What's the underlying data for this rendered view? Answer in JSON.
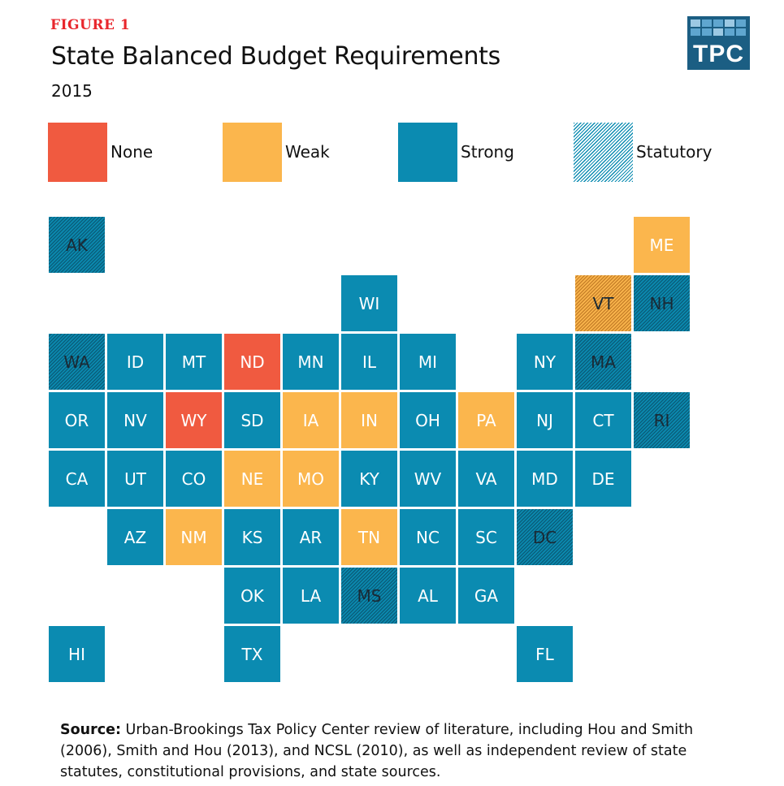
{
  "figure_label": "FIGURE 1",
  "title": "State Balanced Budget Requirements",
  "subtitle": "2015",
  "logo_text": "TPC",
  "legend": [
    {
      "key": "none",
      "label": "None",
      "color": "#f05a40"
    },
    {
      "key": "weak",
      "label": "Weak",
      "color": "#fbb64d"
    },
    {
      "key": "strong",
      "label": "Strong",
      "color": "#0b8bb1"
    },
    {
      "key": "statutory",
      "label": "Statutory",
      "pattern": "hatched"
    }
  ],
  "states": [
    {
      "abbr": "AK",
      "category": "strong",
      "statutory": true
    },
    {
      "abbr": "ME",
      "category": "weak",
      "statutory": false
    },
    {
      "abbr": "WI",
      "category": "strong",
      "statutory": false
    },
    {
      "abbr": "VT",
      "category": "weak",
      "statutory": true
    },
    {
      "abbr": "NH",
      "category": "strong",
      "statutory": true
    },
    {
      "abbr": "WA",
      "category": "strong",
      "statutory": true
    },
    {
      "abbr": "ID",
      "category": "strong",
      "statutory": false
    },
    {
      "abbr": "MT",
      "category": "strong",
      "statutory": false
    },
    {
      "abbr": "ND",
      "category": "none",
      "statutory": false
    },
    {
      "abbr": "MN",
      "category": "strong",
      "statutory": false
    },
    {
      "abbr": "IL",
      "category": "strong",
      "statutory": false
    },
    {
      "abbr": "MI",
      "category": "strong",
      "statutory": false
    },
    {
      "abbr": "NY",
      "category": "strong",
      "statutory": false
    },
    {
      "abbr": "MA",
      "category": "strong",
      "statutory": true
    },
    {
      "abbr": "OR",
      "category": "strong",
      "statutory": false
    },
    {
      "abbr": "NV",
      "category": "strong",
      "statutory": false
    },
    {
      "abbr": "WY",
      "category": "none",
      "statutory": false
    },
    {
      "abbr": "SD",
      "category": "strong",
      "statutory": false
    },
    {
      "abbr": "IA",
      "category": "weak",
      "statutory": false
    },
    {
      "abbr": "IN",
      "category": "weak",
      "statutory": false
    },
    {
      "abbr": "OH",
      "category": "strong",
      "statutory": false
    },
    {
      "abbr": "PA",
      "category": "weak",
      "statutory": false
    },
    {
      "abbr": "NJ",
      "category": "strong",
      "statutory": false
    },
    {
      "abbr": "CT",
      "category": "strong",
      "statutory": false
    },
    {
      "abbr": "RI",
      "category": "strong",
      "statutory": true
    },
    {
      "abbr": "CA",
      "category": "strong",
      "statutory": false
    },
    {
      "abbr": "UT",
      "category": "strong",
      "statutory": false
    },
    {
      "abbr": "CO",
      "category": "strong",
      "statutory": false
    },
    {
      "abbr": "NE",
      "category": "weak",
      "statutory": false
    },
    {
      "abbr": "MO",
      "category": "weak",
      "statutory": false
    },
    {
      "abbr": "KY",
      "category": "strong",
      "statutory": false
    },
    {
      "abbr": "WV",
      "category": "strong",
      "statutory": false
    },
    {
      "abbr": "VA",
      "category": "strong",
      "statutory": false
    },
    {
      "abbr": "MD",
      "category": "strong",
      "statutory": false
    },
    {
      "abbr": "DE",
      "category": "strong",
      "statutory": false
    },
    {
      "abbr": "AZ",
      "category": "strong",
      "statutory": false
    },
    {
      "abbr": "NM",
      "category": "weak",
      "statutory": false
    },
    {
      "abbr": "KS",
      "category": "strong",
      "statutory": false
    },
    {
      "abbr": "AR",
      "category": "strong",
      "statutory": false
    },
    {
      "abbr": "TN",
      "category": "weak",
      "statutory": false
    },
    {
      "abbr": "NC",
      "category": "strong",
      "statutory": false
    },
    {
      "abbr": "SC",
      "category": "strong",
      "statutory": false
    },
    {
      "abbr": "DC",
      "category": "strong",
      "statutory": true
    },
    {
      "abbr": "OK",
      "category": "strong",
      "statutory": false
    },
    {
      "abbr": "LA",
      "category": "strong",
      "statutory": false
    },
    {
      "abbr": "MS",
      "category": "strong",
      "statutory": true
    },
    {
      "abbr": "AL",
      "category": "strong",
      "statutory": false
    },
    {
      "abbr": "GA",
      "category": "strong",
      "statutory": false
    },
    {
      "abbr": "HI",
      "category": "strong",
      "statutory": false
    },
    {
      "abbr": "TX",
      "category": "strong",
      "statutory": false
    },
    {
      "abbr": "FL",
      "category": "strong",
      "statutory": false
    }
  ],
  "source": {
    "label": "Source:",
    "text": " Urban-Brookings Tax Policy Center review of literature, including Hou and Smith (2006), Smith and Hou (2013), and NCSL (2010), as well as independent review of state statutes, constitutional provisions, and state sources."
  }
}
